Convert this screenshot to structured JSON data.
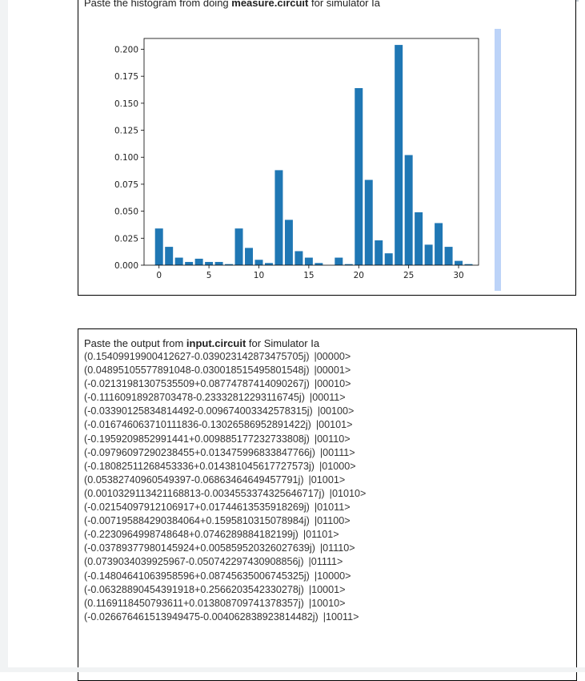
{
  "section1": {
    "heading_prefix": "Paste the histogram from doing ",
    "heading_bold": "measure.circuit",
    "heading_suffix": " for simulator Ia"
  },
  "section2": {
    "heading_prefix": "Paste the output from ",
    "heading_bold": "input.circuit",
    "heading_suffix": " for Simulator Ia",
    "lines": [
      {
        "amp": "(0.15409919900412627-0.039023142873475705j)",
        "state": "|00000>"
      },
      {
        "amp": "(0.04895105577891048-0.030018515495801548j)",
        "state": "|00001>"
      },
      {
        "amp": "(-0.021319813075355 09+0.08774787414090267j)",
        "state": "|00010>"
      },
      {
        "amp": "(-0.11160918928703478-0.23332812293116745j)",
        "state": "|00011>"
      },
      {
        "amp": "(-0.03390125834814492-0.009674003342578315j)",
        "state": "|00100>"
      },
      {
        "amp": "(-0.016746063710111836-0.13026586952891422j)",
        "state": "|00101>"
      },
      {
        "amp": "(-0.1959209852991441+0.009885177232733808j)",
        "state": "|00110>"
      },
      {
        "amp": "(-0.09796097290238455+0.013475996833847766j)",
        "state": "|00111>"
      },
      {
        "amp": "(-0.18082511268453336+0.014381045617727573j)",
        "state": "|01000>"
      },
      {
        "amp": "(0.05382740960549397-0.06863464649457791j)",
        "state": "|01001>"
      },
      {
        "amp": "(0.0010329113421168813-0.0034553374325646717j)",
        "state": "|01010>"
      },
      {
        "amp": "(-0.02154097912106917+0.01744613535918269j)",
        "state": "|01011>"
      },
      {
        "amp": "(-0.007195884290384064+0.1595810315078984j)",
        "state": "|01100>"
      },
      {
        "amp": "(-0.2230964998748648+0.0746289884182199j)",
        "state": "|01101>"
      },
      {
        "amp": "(-0.03789377980145924+0.005859520326027639j)",
        "state": "|01110>"
      },
      {
        "amp": "(0.0739034039925967-0.050742297430908856j)",
        "state": "|01111>"
      },
      {
        "amp": "(-0.14804641063958596+0.08745635006745325j)",
        "state": "|10000>"
      },
      {
        "amp": "(-0.06328890454391918+0.2566203542330278j)",
        "state": "|10001>"
      },
      {
        "amp": "(0.1169118450793611+0.013808709741378357j)",
        "state": "|10010>"
      },
      {
        "amp": "(-0.026676461513949475-0.004062838923814482j)",
        "state": "|10011>"
      }
    ]
  },
  "chart_data": {
    "type": "bar",
    "x": [
      0,
      1,
      2,
      3,
      4,
      5,
      6,
      7,
      8,
      9,
      10,
      11,
      12,
      13,
      14,
      15,
      16,
      17,
      18,
      19,
      20,
      21,
      22,
      23,
      24,
      25,
      26,
      27,
      28,
      29,
      30,
      31
    ],
    "values": [
      0.034,
      0.017,
      0.007,
      0.003,
      0.006,
      0.003,
      0.003,
      0.001,
      0.034,
      0.016,
      0.005,
      0.002,
      0.088,
      0.042,
      0.013,
      0.007,
      0.002,
      0.0,
      0.007,
      0.001,
      0.164,
      0.079,
      0.023,
      0.011,
      0.204,
      0.102,
      0.049,
      0.019,
      0.039,
      0.017,
      0.004,
      0.001
    ],
    "xticks": [
      0,
      5,
      10,
      15,
      20,
      25,
      30
    ],
    "yticks": [
      "0.000",
      "0.025",
      "0.050",
      "0.075",
      "0.100",
      "0.125",
      "0.150",
      "0.175",
      "0.200"
    ],
    "ylim": [
      0,
      0.21
    ],
    "xlim": [
      -1.5,
      32
    ],
    "bar_color": "#1f77b4",
    "title": "",
    "xlabel": "",
    "ylabel": ""
  }
}
